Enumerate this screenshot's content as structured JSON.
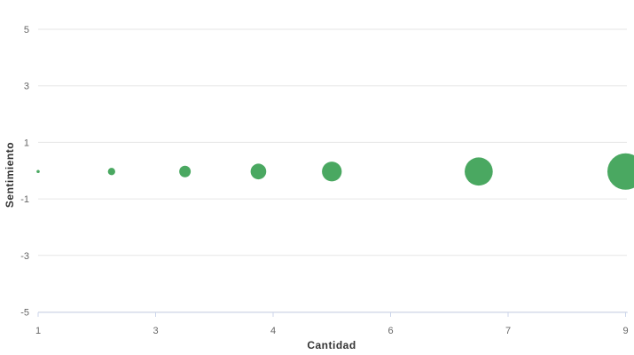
{
  "chart_data": {
    "type": "bubble",
    "title": "",
    "xlabel": "Cantidad",
    "ylabel": "Sentimiento",
    "xlim": [
      1,
      9
    ],
    "ylim": [
      -5,
      5
    ],
    "grid": "horizontal-only",
    "legend": "none",
    "background": "#ffffff",
    "xticks": [
      {
        "value": 1,
        "label": "1"
      },
      {
        "value": 2.6,
        "label": "3"
      },
      {
        "value": 4.2,
        "label": "4"
      },
      {
        "value": 5.8,
        "label": "6"
      },
      {
        "value": 7.4,
        "label": "7"
      },
      {
        "value": 9,
        "label": "9"
      }
    ],
    "yticks": [
      {
        "value": 5,
        "label": "5"
      },
      {
        "value": 3,
        "label": "3"
      },
      {
        "value": 1,
        "label": "1"
      },
      {
        "value": -1,
        "label": "-1"
      },
      {
        "value": -3,
        "label": "-3"
      },
      {
        "value": -5,
        "label": "-5"
      }
    ],
    "series": [
      {
        "color": "#4aa861",
        "points": [
          {
            "x": 1,
            "y": 0,
            "z": 1
          },
          {
            "x": 2,
            "y": 0,
            "z": 2
          },
          {
            "x": 3,
            "y": 0,
            "z": 3
          },
          {
            "x": 4,
            "y": 0,
            "z": 4
          },
          {
            "x": 5,
            "y": 0,
            "z": 5
          },
          {
            "x": 7,
            "y": 0,
            "z": 7
          },
          {
            "x": 9,
            "y": 0,
            "z": 9
          }
        ]
      }
    ]
  },
  "colors": {
    "bubble": "#4aa861",
    "gridline": "#e6e6e6",
    "axis_line": "#ccd6eb",
    "tick_text": "#666666",
    "title_text": "#333333",
    "background": "#ffffff"
  }
}
